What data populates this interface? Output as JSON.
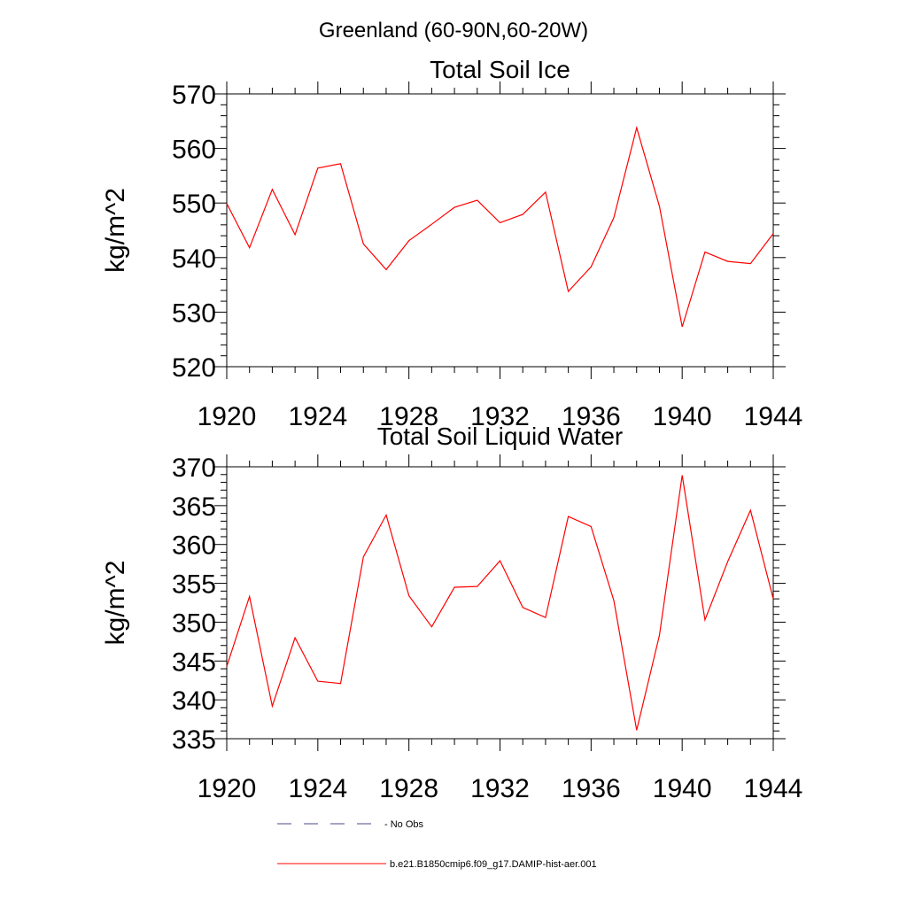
{
  "figure_title": "Greenland (60-90N,60-20W)",
  "colors": {
    "model_line": "#ff0000",
    "obs_line": "#4a4a8a",
    "axis": "#000000"
  },
  "legend": {
    "obs_label": "No Obs",
    "model_label": "b.e21.B1850cmip6.f09_g17.DAMIP-hist-aer.001"
  },
  "chart_data": [
    {
      "type": "line",
      "title": "Total Soil Ice",
      "xlabel": "",
      "ylabel": "kg/m^2",
      "xlim": [
        1920,
        1944
      ],
      "ylim": [
        520,
        570
      ],
      "xticks": [
        1920,
        1924,
        1928,
        1932,
        1936,
        1940,
        1944
      ],
      "yticks": [
        520,
        530,
        540,
        550,
        560,
        570
      ],
      "x": [
        1920,
        1921,
        1922,
        1923,
        1924,
        1925,
        1926,
        1927,
        1928,
        1929,
        1930,
        1931,
        1932,
        1933,
        1934,
        1935,
        1936,
        1937,
        1938,
        1939,
        1940,
        1941,
        1942,
        1943,
        1944
      ],
      "series": [
        {
          "name": "b.e21.B1850cmip6.f09_g17.DAMIP-hist-aer.001",
          "values": [
            549.9,
            541.8,
            552.5,
            544.2,
            556.4,
            557.2,
            542.5,
            537.8,
            543.1,
            546.1,
            549.2,
            550.5,
            546.4,
            547.9,
            552.0,
            533.8,
            538.3,
            547.3,
            563.8,
            549.4,
            527.3,
            541.0,
            539.3,
            538.9,
            544.4
          ]
        }
      ]
    },
    {
      "type": "line",
      "title": "Total Soil Liquid Water",
      "xlabel": "",
      "ylabel": "kg/m^2",
      "xlim": [
        1920,
        1944
      ],
      "ylim": [
        335,
        370
      ],
      "xticks": [
        1920,
        1924,
        1928,
        1932,
        1936,
        1940,
        1944
      ],
      "yticks": [
        335,
        340,
        345,
        350,
        355,
        360,
        365,
        370
      ],
      "x": [
        1920,
        1921,
        1922,
        1923,
        1924,
        1925,
        1926,
        1927,
        1928,
        1929,
        1930,
        1931,
        1932,
        1933,
        1934,
        1935,
        1936,
        1937,
        1938,
        1939,
        1940,
        1941,
        1942,
        1943,
        1944
      ],
      "series": [
        {
          "name": "b.e21.B1850cmip6.f09_g17.DAMIP-hist-aer.001",
          "values": [
            344.3,
            353.3,
            339.2,
            348.0,
            342.4,
            342.1,
            358.4,
            363.8,
            353.4,
            349.4,
            354.5,
            354.6,
            357.9,
            351.9,
            350.6,
            363.6,
            362.3,
            352.8,
            336.1,
            348.3,
            368.9,
            350.3,
            357.8,
            364.4,
            353.0
          ]
        }
      ]
    }
  ]
}
